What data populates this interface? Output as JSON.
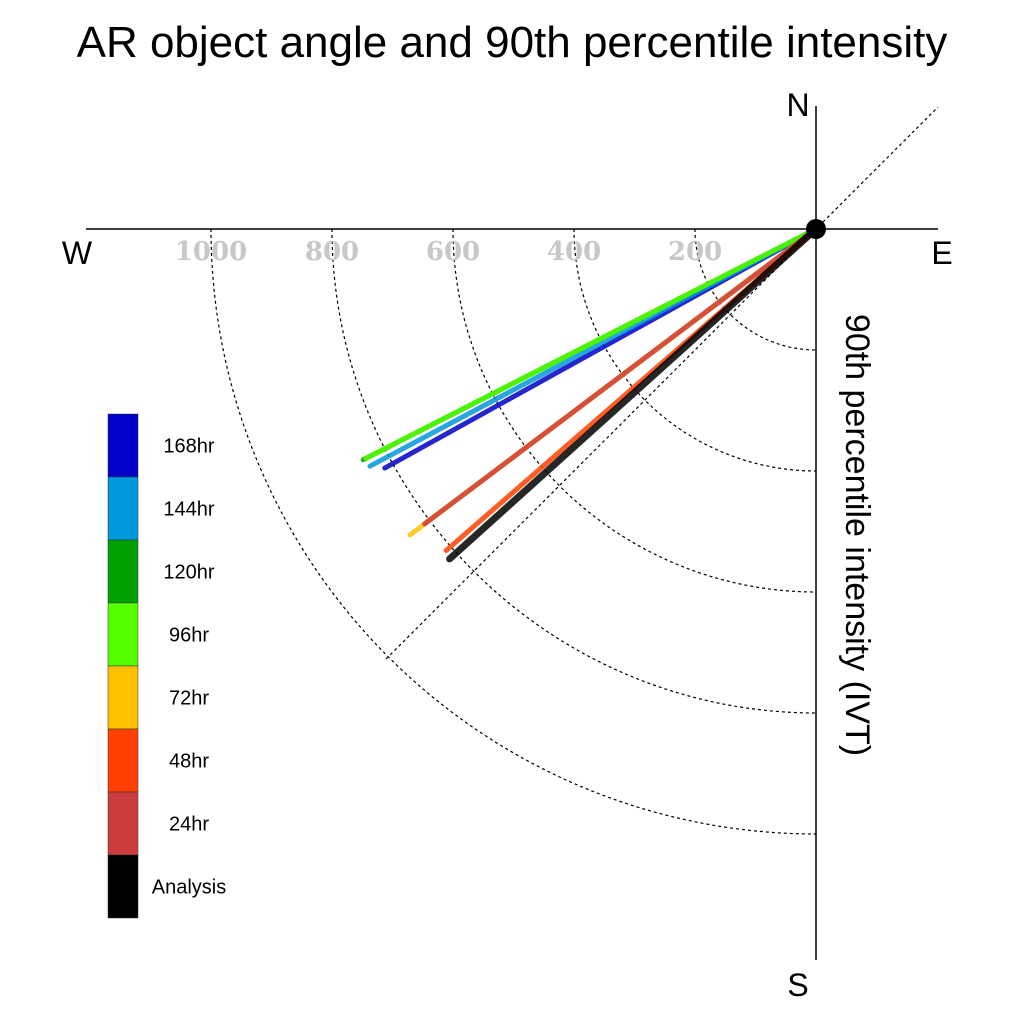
{
  "chart_data": {
    "type": "polar-vector",
    "title": "AR object angle and 90th percentile intensity",
    "compass": {
      "north": "N",
      "south": "S",
      "east": "E",
      "west": "W"
    },
    "axis_label": "90th percentile intensity (IVT)",
    "radius_max": 1000,
    "ring_ticks": [
      200,
      400,
      600,
      800,
      1000
    ],
    "ring_tick_labels": [
      "200",
      "400",
      "600",
      "800",
      "1000"
    ],
    "series": [
      {
        "name": "168hr",
        "color": "#0000c8",
        "angle_deg": 29,
        "intensity": 815
      },
      {
        "name": "144hr",
        "color": "#0098dc",
        "angle_deg": 28,
        "intensity": 835
      },
      {
        "name": "120hr",
        "color": "#00a000",
        "angle_deg": 27,
        "intensity": 840
      },
      {
        "name": "96hr",
        "color": "#55ff00",
        "angle_deg": 27,
        "intensity": 835
      },
      {
        "name": "72hr",
        "color": "#ffc000",
        "angle_deg": 37,
        "intensity": 840
      },
      {
        "name": "48hr",
        "color": "#ff4000",
        "angle_deg": 41,
        "intensity": 810
      },
      {
        "name": "24hr",
        "color": "#cc3c3c",
        "angle_deg": 37,
        "intensity": 810
      },
      {
        "name": "Analysis",
        "color": "#000000",
        "angle_deg": 42,
        "intensity": 815
      }
    ],
    "legend": [
      "168hr",
      "144hr",
      "120hr",
      "96hr",
      "72hr",
      "48hr",
      "24hr",
      "Analysis"
    ]
  }
}
